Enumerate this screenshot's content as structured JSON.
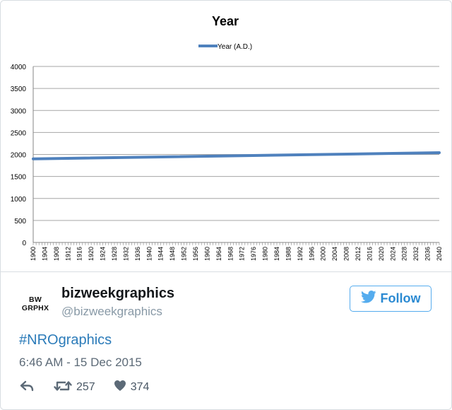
{
  "chart_data": {
    "type": "line",
    "title": "Year",
    "xlabel": "",
    "ylabel": "",
    "series": [
      {
        "name": "Year (A.D.)",
        "color": "#4f81bd",
        "x": [
          1900,
          2040
        ],
        "values": [
          1900,
          2040
        ]
      }
    ],
    "x_ticks": [
      "1900",
      "1904",
      "1908",
      "1912",
      "1916",
      "1920",
      "1924",
      "1928",
      "1932",
      "1936",
      "1940",
      "1944",
      "1948",
      "1952",
      "1956",
      "1960",
      "1964",
      "1968",
      "1972",
      "1976",
      "1980",
      "1984",
      "1988",
      "1992",
      "1996",
      "2000",
      "2004",
      "2008",
      "2012",
      "2016",
      "2020",
      "2024",
      "2028",
      "2032",
      "2036",
      "2040"
    ],
    "y_ticks": [
      "0",
      "500",
      "1000",
      "1500",
      "2000",
      "2500",
      "3000",
      "3500",
      "4000"
    ],
    "xlim": [
      1900,
      2040
    ],
    "ylim": [
      0,
      4000
    ],
    "grid": true,
    "legend_position": "top"
  },
  "tweet": {
    "avatar_lines": [
      "BW",
      "GRPHX"
    ],
    "display_name": "bizweekgraphics",
    "handle": "@bizweekgraphics",
    "follow_label": "Follow",
    "hashtag": "#NROgraphics",
    "timestamp": "6:46 AM - 15 Dec 2015",
    "retweets": "257",
    "likes": "374",
    "icons": {
      "follow": "twitter-bird-icon",
      "reply": "reply-icon",
      "retweet": "retweet-icon",
      "like": "heart-icon"
    },
    "colors": {
      "accent": "#55acee",
      "link": "#2b7bb9",
      "muted": "#8899a6"
    }
  }
}
